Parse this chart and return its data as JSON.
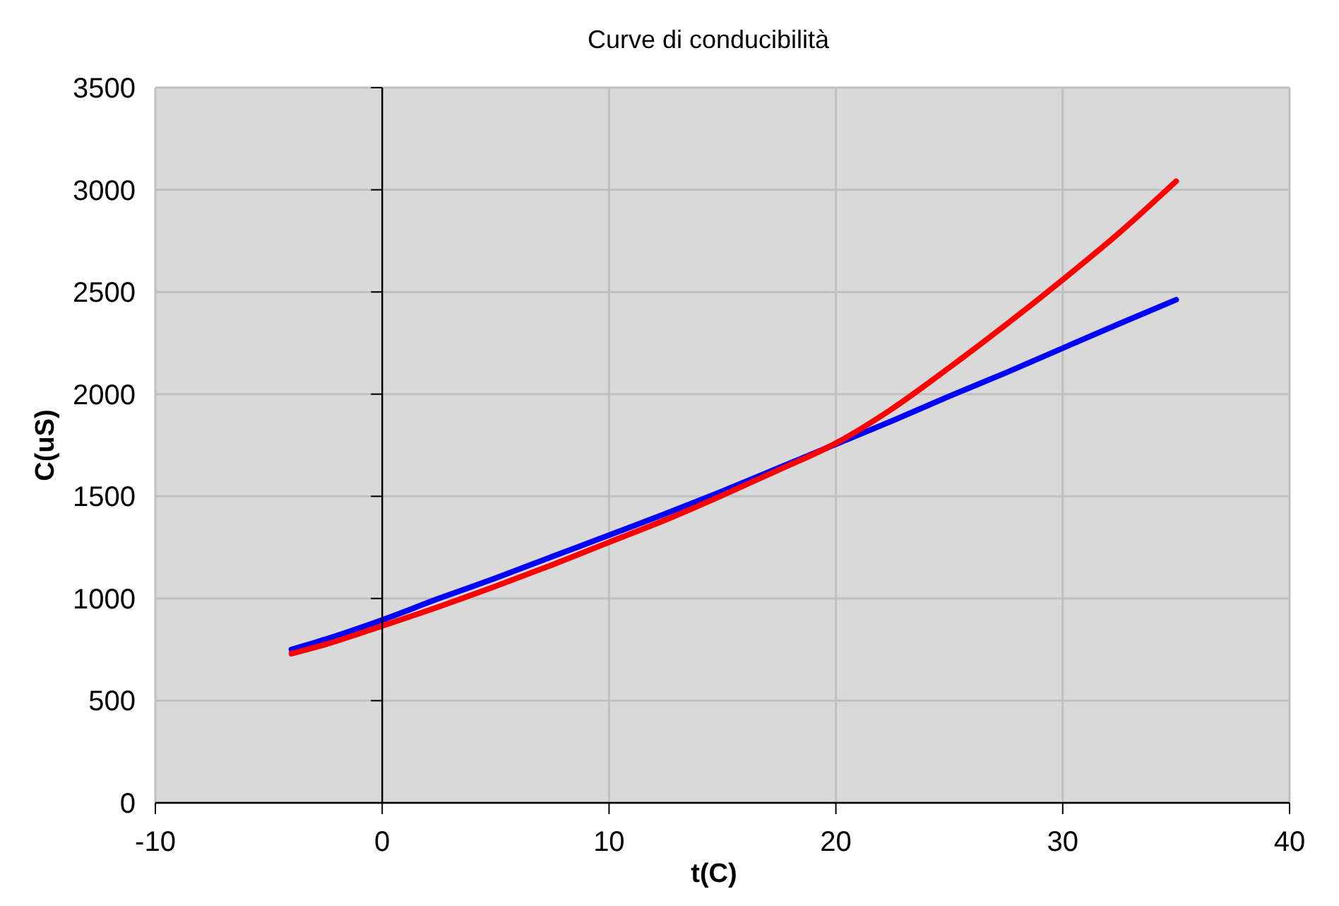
{
  "chart_data": {
    "type": "line",
    "title": "Curve di conducibilità",
    "xlabel": "t(C)",
    "ylabel": "C(uS)",
    "xlim": [
      -10,
      40
    ],
    "xticks": [
      -10,
      0,
      10,
      20,
      30,
      40
    ],
    "ylim": [
      0,
      3500
    ],
    "yticks": [
      0,
      500,
      1000,
      1500,
      2000,
      2500,
      3000,
      3500
    ],
    "grid": true,
    "x": [
      -4,
      -2.5,
      0,
      2.5,
      5,
      7.5,
      10,
      12.5,
      15,
      17.5,
      20,
      22.5,
      25,
      27.5,
      30,
      32.5,
      35
    ],
    "series": [
      {
        "color": "#0000ff",
        "values": [
          750,
          800,
          895,
          1000,
          1100,
          1205,
          1310,
          1415,
          1525,
          1640,
          1755,
          1870,
          1990,
          2105,
          2225,
          2345,
          2462
        ]
      },
      {
        "color": "#ff0000",
        "values": [
          730,
          775,
          866,
          960,
          1060,
          1165,
          1275,
          1385,
          1505,
          1630,
          1760,
          1930,
          2130,
          2340,
          2560,
          2790,
          3042
        ]
      }
    ]
  }
}
